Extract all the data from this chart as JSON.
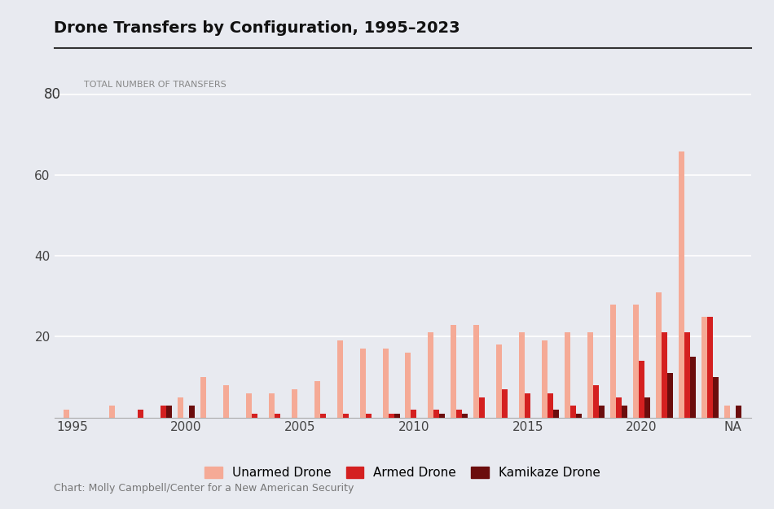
{
  "title": "Drone Transfers by Configuration, 1995–2023",
  "ylabel_text": "TOTAL NUMBER OF TRANSFERS",
  "background_color": "#e8eaf0",
  "years": [
    1995,
    1996,
    1997,
    1998,
    1999,
    2000,
    2001,
    2002,
    2003,
    2004,
    2005,
    2006,
    2007,
    2008,
    2009,
    2010,
    2011,
    2012,
    2013,
    2014,
    2015,
    2016,
    2017,
    2018,
    2019,
    2020,
    2021,
    2022,
    2023,
    "NA"
  ],
  "unarmed": [
    2,
    0,
    3,
    0,
    0,
    5,
    10,
    8,
    6,
    6,
    7,
    9,
    19,
    17,
    17,
    16,
    21,
    23,
    23,
    18,
    21,
    19,
    21,
    21,
    28,
    28,
    31,
    66,
    25,
    3
  ],
  "armed": [
    0,
    0,
    0,
    2,
    3,
    0,
    0,
    0,
    1,
    1,
    0,
    1,
    1,
    1,
    1,
    2,
    2,
    2,
    5,
    7,
    6,
    6,
    3,
    8,
    5,
    14,
    21,
    21,
    25,
    0
  ],
  "kamikaze": [
    0,
    0,
    0,
    0,
    3,
    3,
    0,
    0,
    0,
    0,
    0,
    0,
    0,
    0,
    1,
    0,
    1,
    1,
    0,
    0,
    0,
    2,
    1,
    3,
    3,
    5,
    11,
    15,
    10,
    3
  ],
  "color_unarmed": "#f5aa96",
  "color_armed": "#d42020",
  "color_kamikaze": "#6b0d0d",
  "yticks": [
    20,
    40,
    60,
    80
  ],
  "ylim": [
    0,
    82
  ],
  "footer": "Chart: Molly Campbell/Center for a New American Security",
  "label_years": [
    1995,
    2000,
    2005,
    2010,
    2015,
    2020,
    "NA"
  ]
}
